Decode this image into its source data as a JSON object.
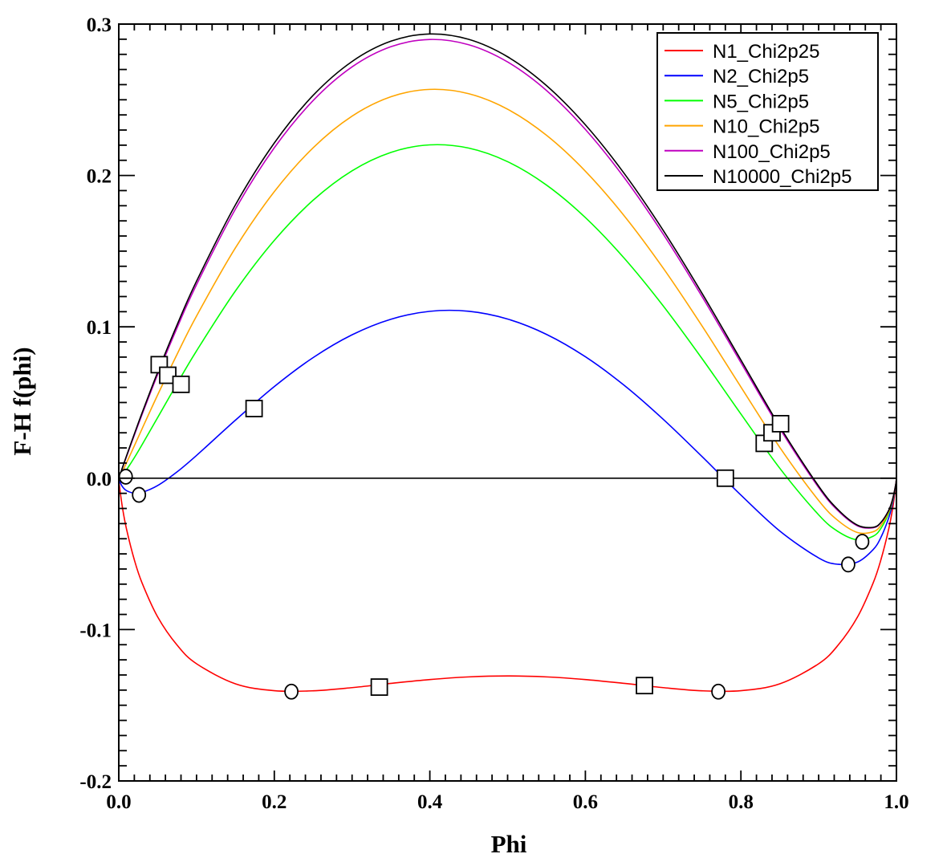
{
  "chart_data": {
    "type": "line",
    "title": "",
    "xlabel": "Phi",
    "ylabel": "F-H f(phi)",
    "xlim": [
      0.0,
      1.0
    ],
    "ylim": [
      -0.2,
      0.3
    ],
    "grid": false,
    "legend_position": "top-right",
    "x_ticks": [
      0.0,
      0.2,
      0.4,
      0.6,
      0.8,
      1.0
    ],
    "x_tick_labels": [
      "0.0",
      "0.2",
      "0.4",
      "0.6",
      "0.8",
      "1.0"
    ],
    "y_ticks": [
      -0.2,
      -0.1,
      0.0,
      0.1,
      0.2,
      0.3
    ],
    "y_tick_labels": [
      "-0.2",
      "-0.1",
      "0.0",
      "0.1",
      "0.2",
      "0.3"
    ],
    "x_minor_step": 0.02,
    "y_minor_step": 0.01,
    "reference_line": {
      "y": 0.0,
      "color": "#000000"
    },
    "x": [
      0,
      0.001,
      0.005,
      0.01,
      0.02,
      0.03,
      0.05,
      0.075,
      0.1,
      0.15,
      0.2,
      0.25,
      0.3,
      0.35,
      0.4,
      0.45,
      0.5,
      0.55,
      0.6,
      0.65,
      0.7,
      0.75,
      0.8,
      0.85,
      0.9,
      0.925,
      0.95,
      0.97,
      0.98,
      0.99,
      0.995,
      0.999,
      1.0
    ],
    "series": [
      {
        "name": "N1_Chi2p25",
        "color": "#ff0000",
        "values": [
          0,
          -0.00566,
          -0.020286,
          -0.033727,
          -0.053939,
          -0.069268,
          -0.091641,
          -0.110288,
          -0.122583,
          -0.135834,
          -0.140403,
          -0.140461,
          -0.138365,
          -0.135565,
          -0.133011,
          -0.13127,
          -0.130647,
          -0.13127,
          -0.133011,
          -0.135565,
          -0.138365,
          -0.140461,
          -0.140403,
          -0.135834,
          -0.122583,
          -0.110288,
          -0.091641,
          -0.069268,
          -0.053939,
          -0.033727,
          -0.020286,
          -0.00566,
          0
        ]
      },
      {
        "name": "N2_Chi2p5",
        "color": "#0000ff",
        "values": [
          0,
          -0.001956,
          -0.005796,
          -0.008226,
          -0.009919,
          -0.009394,
          -0.004873,
          0.004189,
          0.015046,
          0.038325,
          0.060541,
          0.079701,
          0.094732,
          0.105025,
          0.110247,
          0.110272,
          0.105139,
          0.095017,
          0.080236,
          0.061307,
          0.038972,
          0.014295,
          -0.011146,
          -0.034889,
          -0.052672,
          -0.05689,
          -0.055402,
          -0.04722,
          -0.039141,
          -0.026277,
          -0.016548,
          -0.00491,
          0
        ]
      },
      {
        "name": "N5_Chi2p5",
        "color": "#00ff00",
        "values": [
          0,
          0.000116,
          0.002152,
          0.00559,
          0.013553,
          0.022166,
          0.040064,
          0.062469,
          0.084124,
          0.123695,
          0.157107,
          0.183673,
          0.20309,
          0.215255,
          0.220202,
          0.218073,
          0.209111,
          0.19366,
          0.172185,
          0.14531,
          0.113874,
          0.079024,
          0.042409,
          0.006554,
          -0.024224,
          -0.035256,
          -0.040783,
          -0.038356,
          -0.033201,
          -0.023292,
          -0.015052,
          -0.00461,
          0
        ]
      },
      {
        "name": "N10_Chi2p5",
        "color": "#ffa500",
        "values": [
          0,
          0.000807,
          0.004801,
          0.010195,
          0.021377,
          0.032685,
          0.055042,
          0.081896,
          0.10715,
          0.152152,
          0.189296,
          0.218331,
          0.239209,
          0.251998,
          0.256853,
          0.254006,
          0.243769,
          0.226541,
          0.202834,
          0.173311,
          0.138841,
          0.1006,
          0.06026,
          0.020368,
          -0.014742,
          -0.028044,
          -0.03591,
          -0.035402,
          -0.031221,
          -0.022297,
          -0.014553,
          -0.00451,
          0
        ]
      },
      {
        "name": "N100_Chi2p5",
        "color": "#c000c0",
        "values": [
          0,
          0.001429,
          0.007185,
          0.014339,
          0.028419,
          0.042153,
          0.068523,
          0.09938,
          0.127873,
          0.177763,
          0.218266,
          0.249522,
          0.271716,
          0.285067,
          0.28984,
          0.286347,
          0.27496,
          0.256134,
          0.230419,
          0.198512,
          0.161311,
          0.120018,
          0.076327,
          0.032801,
          -0.006207,
          -0.021554,
          -0.031524,
          -0.032742,
          -0.029439,
          -0.021402,
          -0.014104,
          -0.00442,
          0
        ]
      },
      {
        "name": "N10000_Chi2p5",
        "color": "#000000",
        "values": [
          0,
          0.001497,
          0.007447,
          0.014795,
          0.029193,
          0.043194,
          0.070006,
          0.101304,
          0.130153,
          0.180581,
          0.221453,
          0.252953,
          0.275292,
          0.288704,
          0.293468,
          0.289904,
          0.278391,
          0.259389,
          0.233453,
          0.201284,
          0.163783,
          0.122154,
          0.078094,
          0.034168,
          -0.005268,
          -0.02084,
          -0.031042,
          -0.03245,
          -0.029243,
          -0.021303,
          -0.014054,
          -0.00441,
          0
        ]
      }
    ],
    "square_markers": [
      {
        "x": 0.052,
        "y": 0.075
      },
      {
        "x": 0.063,
        "y": 0.068
      },
      {
        "x": 0.08,
        "y": 0.062
      },
      {
        "x": 0.174,
        "y": 0.046
      },
      {
        "x": 0.335,
        "y": -0.138
      },
      {
        "x": 0.676,
        "y": -0.137
      },
      {
        "x": 0.78,
        "y": 0.0
      },
      {
        "x": 0.83,
        "y": 0.023
      },
      {
        "x": 0.84,
        "y": 0.03
      },
      {
        "x": 0.851,
        "y": 0.036
      }
    ],
    "circle_markers": [
      {
        "x": 0.009,
        "y": 0.001
      },
      {
        "x": 0.026,
        "y": -0.011
      },
      {
        "x": 0.222,
        "y": -0.141
      },
      {
        "x": 0.771,
        "y": -0.141
      },
      {
        "x": 0.938,
        "y": -0.057
      },
      {
        "x": 0.956,
        "y": -0.042
      }
    ]
  }
}
